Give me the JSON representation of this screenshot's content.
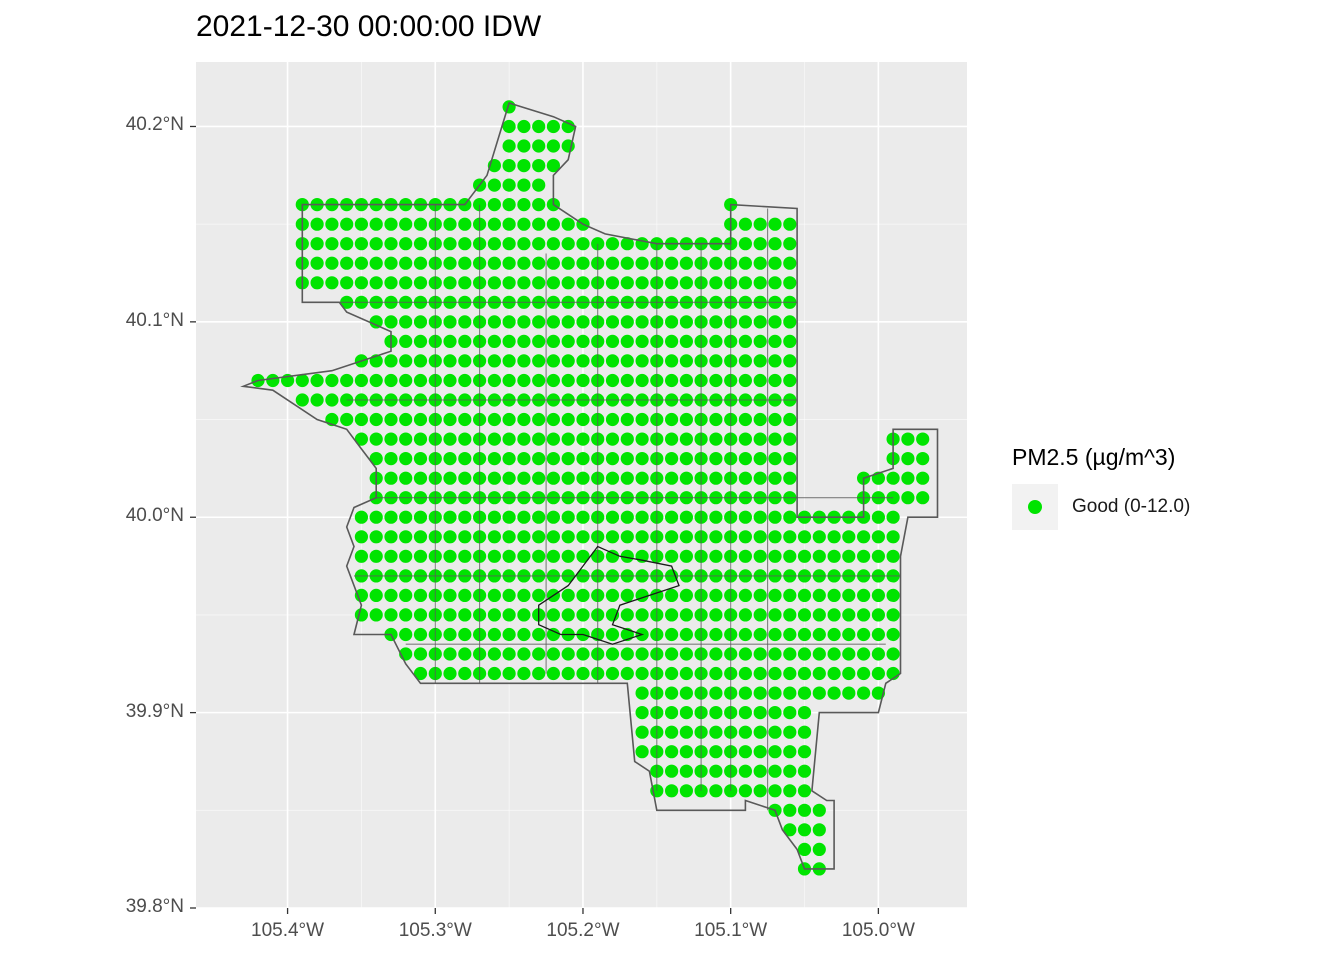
{
  "title": "2021-12-30 00:00:00 IDW",
  "legend": {
    "title": "PM2.5 (µg/m^3)",
    "items": [
      {
        "label": "Good (0-12.0)",
        "color": "#00e400",
        "icon": "point"
      }
    ]
  },
  "map": {
    "projection": "lon-lat",
    "panel_background": "#ebebeb",
    "grid_color": "#ffffff",
    "boundary_color": "#595959",
    "x_ticks": [
      {
        "value": -105.4,
        "label": "105.4°W"
      },
      {
        "value": -105.3,
        "label": "105.3°W"
      },
      {
        "value": -105.2,
        "label": "105.2°W"
      },
      {
        "value": -105.1,
        "label": "105.1°W"
      },
      {
        "value": -105.0,
        "label": "105.0°W"
      }
    ],
    "y_ticks": [
      {
        "value": 40.2,
        "label": "40.2°N"
      },
      {
        "value": 40.1,
        "label": "40.1°N"
      },
      {
        "value": 40.0,
        "label": "40.0°N"
      },
      {
        "value": 39.9,
        "label": "39.9°N"
      },
      {
        "value": 39.8,
        "label": "39.8°N"
      }
    ],
    "xlim": [
      -105.462,
      -104.94
    ],
    "ylim": [
      39.8,
      40.233
    ],
    "grid_spacing_deg": 0.01,
    "point_value_category": "Good (0-12.0)",
    "region_outline": [
      [
        -105.42,
        40.07
      ],
      [
        -105.37,
        40.075
      ],
      [
        -105.33,
        40.085
      ],
      [
        -105.33,
        40.095
      ],
      [
        -105.36,
        40.105
      ],
      [
        -105.365,
        40.11
      ],
      [
        -105.39,
        40.11
      ],
      [
        -105.39,
        40.16
      ],
      [
        -105.28,
        40.16
      ],
      [
        -105.265,
        40.175
      ],
      [
        -105.25,
        40.212
      ],
      [
        -105.22,
        40.205
      ],
      [
        -105.205,
        40.2
      ],
      [
        -105.21,
        40.183
      ],
      [
        -105.22,
        40.175
      ],
      [
        -105.22,
        40.16
      ],
      [
        -105.2,
        40.15
      ],
      [
        -105.185,
        40.145
      ],
      [
        -105.15,
        40.14
      ],
      [
        -105.1,
        40.14
      ],
      [
        -105.1,
        40.16
      ],
      [
        -105.055,
        40.158
      ],
      [
        -105.055,
        40.0
      ],
      [
        -105.01,
        40.0
      ],
      [
        -105.01,
        40.02
      ],
      [
        -104.99,
        40.025
      ],
      [
        -104.99,
        40.045
      ],
      [
        -104.96,
        40.045
      ],
      [
        -104.96,
        40.0
      ],
      [
        -104.98,
        40.0
      ],
      [
        -104.985,
        39.98
      ],
      [
        -104.985,
        39.92
      ],
      [
        -104.995,
        39.915
      ],
      [
        -105.0,
        39.9
      ],
      [
        -105.04,
        39.9
      ],
      [
        -105.045,
        39.86
      ],
      [
        -105.035,
        39.855
      ],
      [
        -105.03,
        39.855
      ],
      [
        -105.03,
        39.83
      ],
      [
        -105.03,
        39.82
      ],
      [
        -105.05,
        39.82
      ],
      [
        -105.055,
        39.83
      ],
      [
        -105.065,
        39.84
      ],
      [
        -105.07,
        39.85
      ],
      [
        -105.09,
        39.855
      ],
      [
        -105.09,
        39.85
      ],
      [
        -105.12,
        39.85
      ],
      [
        -105.15,
        39.85
      ],
      [
        -105.155,
        39.87
      ],
      [
        -105.165,
        39.875
      ],
      [
        -105.17,
        39.915
      ],
      [
        -105.31,
        39.915
      ],
      [
        -105.32,
        39.925
      ],
      [
        -105.33,
        39.94
      ],
      [
        -105.355,
        39.94
      ],
      [
        -105.35,
        39.955
      ],
      [
        -105.36,
        39.975
      ],
      [
        -105.355,
        39.985
      ],
      [
        -105.36,
        39.995
      ],
      [
        -105.355,
        40.005
      ],
      [
        -105.34,
        40.01
      ],
      [
        -105.34,
        40.025
      ],
      [
        -105.35,
        40.035
      ],
      [
        -105.36,
        40.045
      ],
      [
        -105.38,
        40.05
      ],
      [
        -105.41,
        40.065
      ],
      [
        -105.43,
        40.067
      ],
      [
        -105.42,
        40.07
      ]
    ],
    "inner_boundaries": [
      [
        [
          -105.3,
          40.16
        ],
        [
          -105.3,
          39.915
        ]
      ],
      [
        [
          -105.225,
          40.135
        ],
        [
          -105.225,
          39.92
        ]
      ],
      [
        [
          -105.15,
          40.14
        ],
        [
          -105.15,
          39.86
        ]
      ],
      [
        [
          -105.1,
          40.14
        ],
        [
          -105.1,
          39.86
        ]
      ],
      [
        [
          -105.39,
          40.11
        ],
        [
          -105.055,
          40.11
        ]
      ],
      [
        [
          -105.36,
          40.06
        ],
        [
          -105.055,
          40.06
        ]
      ],
      [
        [
          -105.34,
          40.01
        ],
        [
          -104.99,
          40.01
        ]
      ],
      [
        [
          -105.355,
          39.97
        ],
        [
          -104.985,
          39.97
        ]
      ],
      [
        [
          -105.32,
          39.935
        ],
        [
          -104.995,
          39.935
        ]
      ],
      [
        [
          -105.27,
          40.16
        ],
        [
          -105.27,
          39.915
        ]
      ],
      [
        [
          -105.19,
          40.14
        ],
        [
          -105.19,
          39.915
        ]
      ],
      [
        [
          -105.12,
          40.14
        ],
        [
          -105.12,
          39.86
        ]
      ],
      [
        [
          -105.075,
          40.158
        ],
        [
          -105.075,
          39.85
        ]
      ]
    ],
    "lake_outline": [
      [
        -105.23,
        39.955
      ],
      [
        -105.21,
        39.965
      ],
      [
        -105.19,
        39.985
      ],
      [
        -105.175,
        39.98
      ],
      [
        -105.16,
        39.978
      ],
      [
        -105.14,
        39.975
      ],
      [
        -105.135,
        39.965
      ],
      [
        -105.155,
        39.96
      ],
      [
        -105.175,
        39.955
      ],
      [
        -105.18,
        39.945
      ],
      [
        -105.16,
        39.94
      ],
      [
        -105.18,
        39.935
      ],
      [
        -105.2,
        39.94
      ],
      [
        -105.215,
        39.94
      ],
      [
        -105.23,
        39.945
      ],
      [
        -105.23,
        39.955
      ]
    ]
  }
}
